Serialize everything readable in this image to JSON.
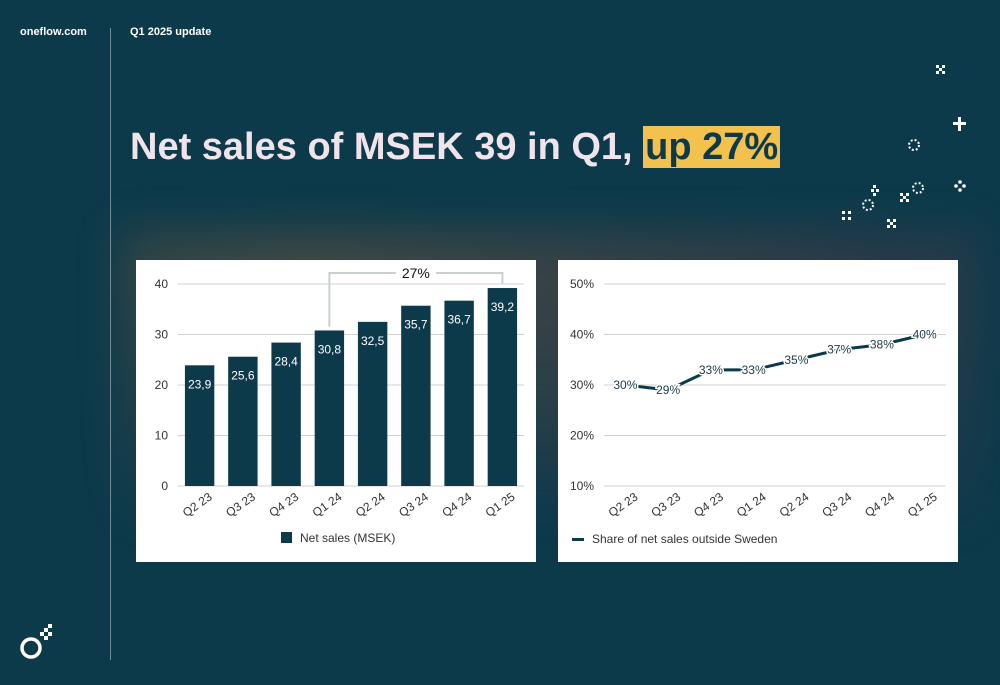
{
  "header": {
    "brand": "oneflow.com",
    "period": "Q1 2025 update"
  },
  "headline": {
    "main": "Net sales of MSEK 39 in Q1, ",
    "highlight": "up 27%"
  },
  "colors": {
    "background": "#0d3a4b",
    "bar": "#0d3a4b",
    "highlight": "#f2c14e",
    "headline": "#f0e3ea"
  },
  "icons": {
    "logo": "oneflow-logo-icon",
    "decoration": "sparkle-icon"
  },
  "chart_data": [
    {
      "type": "bar",
      "categories": [
        "Q2 23",
        "Q3 23",
        "Q4 23",
        "Q1 24",
        "Q2 24",
        "Q3 24",
        "Q4 24",
        "Q1 25"
      ],
      "values": [
        23.9,
        25.6,
        28.4,
        30.8,
        32.5,
        35.7,
        36.7,
        39.2
      ],
      "value_labels": [
        "23,9",
        "25,6",
        "28,4",
        "30,8",
        "32,5",
        "35,7",
        "36,7",
        "39,2"
      ],
      "series": [
        {
          "name": "Net sales (MSEK)"
        }
      ],
      "ylim": [
        0,
        40
      ],
      "yticks": [
        "0",
        "10",
        "20",
        "30",
        "40"
      ],
      "grid": true,
      "legend_position": "bottom",
      "annotation": {
        "text": "27%",
        "from": "Q1 24",
        "to": "Q1 25"
      }
    },
    {
      "type": "line",
      "categories": [
        "Q2 23",
        "Q3 23",
        "Q4 23",
        "Q1 24",
        "Q2 24",
        "Q3 24",
        "Q4 24",
        "Q1 25"
      ],
      "values": [
        30,
        29,
        33,
        33,
        35,
        37,
        38,
        40
      ],
      "value_labels": [
        "30%",
        "29%",
        "33%",
        "33%",
        "35%",
        "37%",
        "38%",
        "40%"
      ],
      "series": [
        {
          "name": "Share of net sales outside Sweden"
        }
      ],
      "ylim": [
        10,
        50
      ],
      "yticks": [
        "10%",
        "20%",
        "30%",
        "40%",
        "50%"
      ],
      "grid": true,
      "legend_position": "bottom"
    }
  ]
}
